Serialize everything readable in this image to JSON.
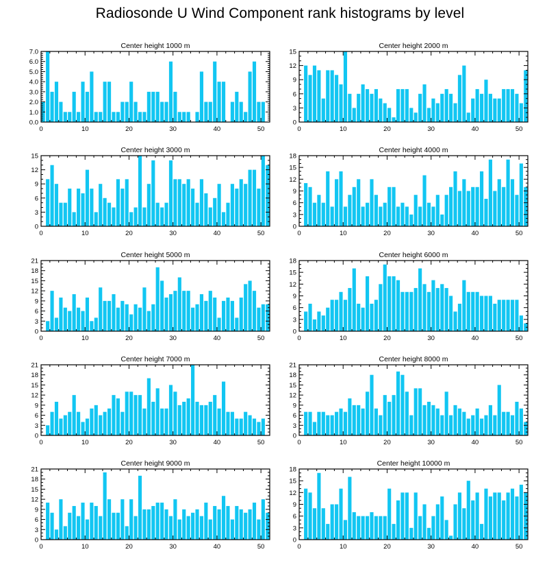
{
  "page_title": "Radiosonde U Wind Component rank histograms by level",
  "colors": {
    "bar": "#12C6F2",
    "axis": "#000000",
    "background": "#FFFFFF"
  },
  "chart_data": [
    {
      "type": "bar",
      "title": "Center height 1000 m",
      "x": [
        0,
        1,
        2,
        3,
        4,
        5,
        6,
        7,
        8,
        9,
        10,
        11,
        12,
        13,
        14,
        15,
        16,
        17,
        18,
        19,
        20,
        21,
        22,
        23,
        24,
        25,
        26,
        27,
        28,
        29,
        30,
        31,
        32,
        33,
        34,
        35,
        36,
        37,
        38,
        39,
        40,
        41,
        42,
        43,
        44,
        45,
        46,
        47,
        48,
        49,
        50,
        51
      ],
      "values": [
        2,
        7,
        3,
        4,
        2,
        1,
        1,
        3,
        1,
        4,
        3,
        5,
        1,
        1,
        4,
        4,
        1,
        1,
        2,
        2,
        4,
        2,
        1,
        1,
        3,
        3,
        3,
        2,
        2,
        6,
        3,
        1,
        1,
        1,
        0,
        1,
        5,
        2,
        2,
        6,
        4,
        4,
        0,
        2,
        3,
        2,
        1,
        5,
        6,
        2,
        2,
        0
      ],
      "xlim": [
        0,
        52
      ],
      "ylim": [
        0,
        7
      ],
      "xticks": [
        "0",
        "10",
        "20",
        "30",
        "40",
        "50"
      ],
      "yticks": [
        "0.0",
        "1.0",
        "2.0",
        "3.0",
        "4.0",
        "5.0",
        "6.0",
        "7.0"
      ]
    },
    {
      "type": "bar",
      "title": "Center height 2000 m",
      "x": [
        0,
        1,
        2,
        3,
        4,
        5,
        6,
        7,
        8,
        9,
        10,
        11,
        12,
        13,
        14,
        15,
        16,
        17,
        18,
        19,
        20,
        21,
        22,
        23,
        24,
        25,
        26,
        27,
        28,
        29,
        30,
        31,
        32,
        33,
        34,
        35,
        36,
        37,
        38,
        39,
        40,
        41,
        42,
        43,
        44,
        45,
        46,
        47,
        48,
        49,
        50,
        51
      ],
      "values": [
        0,
        12,
        10,
        12,
        11,
        5,
        11,
        11,
        10,
        8,
        15,
        6,
        3,
        6,
        8,
        7,
        6,
        7,
        5,
        4,
        3,
        1,
        7,
        7,
        7,
        3,
        2,
        6,
        8,
        3,
        5,
        4,
        6,
        7,
        6,
        4,
        10,
        12,
        2,
        5,
        7,
        6,
        9,
        6,
        5,
        5,
        7,
        7,
        7,
        6,
        4,
        11
      ],
      "xlim": [
        0,
        52
      ],
      "ylim": [
        0,
        15
      ],
      "xticks": [
        "0",
        "10",
        "20",
        "30",
        "40",
        "50"
      ],
      "yticks": [
        "0",
        "3",
        "6",
        "9",
        "12",
        "15"
      ]
    },
    {
      "type": "bar",
      "title": "Center height 3000 m",
      "x": [
        0,
        1,
        2,
        3,
        4,
        5,
        6,
        7,
        8,
        9,
        10,
        11,
        12,
        13,
        14,
        15,
        16,
        17,
        18,
        19,
        20,
        21,
        22,
        23,
        24,
        25,
        26,
        27,
        28,
        29,
        30,
        31,
        32,
        33,
        34,
        35,
        36,
        37,
        38,
        39,
        40,
        41,
        42,
        43,
        44,
        45,
        46,
        47,
        48,
        49,
        50,
        51
      ],
      "values": [
        0,
        10,
        13,
        9,
        5,
        5,
        8,
        3,
        8,
        7,
        12,
        8,
        3,
        9,
        6,
        5,
        4,
        10,
        8,
        10,
        3,
        4,
        15,
        4,
        9,
        14,
        5,
        4,
        5,
        14,
        10,
        10,
        9,
        10,
        8,
        5,
        10,
        7,
        4,
        6,
        9,
        3,
        5,
        9,
        8,
        10,
        9,
        12,
        12,
        8,
        15,
        13
      ],
      "xlim": [
        0,
        52
      ],
      "ylim": [
        0,
        15
      ],
      "xticks": [
        "0",
        "10",
        "20",
        "30",
        "40",
        "50"
      ],
      "yticks": [
        "0",
        "3",
        "6",
        "9",
        "12",
        "15"
      ]
    },
    {
      "type": "bar",
      "title": "Center height 4000 m",
      "x": [
        0,
        1,
        2,
        3,
        4,
        5,
        6,
        7,
        8,
        9,
        10,
        11,
        12,
        13,
        14,
        15,
        16,
        17,
        18,
        19,
        20,
        21,
        22,
        23,
        24,
        25,
        26,
        27,
        28,
        29,
        30,
        31,
        32,
        33,
        34,
        35,
        36,
        37,
        38,
        39,
        40,
        41,
        42,
        43,
        44,
        45,
        46,
        47,
        48,
        49,
        50,
        51
      ],
      "values": [
        0,
        11,
        10,
        6,
        8,
        6,
        14,
        5,
        12,
        14,
        5,
        8,
        10,
        12,
        5,
        6,
        12,
        8,
        5,
        6,
        10,
        10,
        5,
        6,
        5,
        3,
        8,
        5,
        13,
        6,
        5,
        8,
        3,
        8,
        10,
        14,
        9,
        12,
        9,
        10,
        10,
        14,
        7,
        17,
        9,
        12,
        10,
        17,
        12,
        8,
        16,
        10
      ],
      "xlim": [
        0,
        52
      ],
      "ylim": [
        0,
        18
      ],
      "xticks": [
        "0",
        "10",
        "20",
        "30",
        "40",
        "50"
      ],
      "yticks": [
        "0",
        "3",
        "6",
        "9",
        "12",
        "15",
        "18"
      ]
    },
    {
      "type": "bar",
      "title": "Center height 5000 m",
      "x": [
        0,
        1,
        2,
        3,
        4,
        5,
        6,
        7,
        8,
        9,
        10,
        11,
        12,
        13,
        14,
        15,
        16,
        17,
        18,
        19,
        20,
        21,
        22,
        23,
        24,
        25,
        26,
        27,
        28,
        29,
        30,
        31,
        32,
        33,
        34,
        35,
        36,
        37,
        38,
        39,
        40,
        41,
        42,
        43,
        44,
        45,
        46,
        47,
        48,
        49,
        50,
        51
      ],
      "values": [
        0,
        3,
        12,
        4,
        10,
        7,
        6,
        11,
        7,
        6,
        10,
        3,
        4,
        13,
        9,
        9,
        11,
        7,
        9,
        8,
        5,
        8,
        7,
        13,
        6,
        8,
        19,
        15,
        10,
        11,
        12,
        16,
        12,
        12,
        7,
        8,
        11,
        9,
        12,
        10,
        4,
        9,
        10,
        9,
        4,
        10,
        14,
        15,
        12,
        7,
        8,
        8
      ],
      "xlim": [
        0,
        52
      ],
      "ylim": [
        0,
        21
      ],
      "xticks": [
        "0",
        "10",
        "20",
        "30",
        "40",
        "50"
      ],
      "yticks": [
        "0",
        "3",
        "6",
        "9",
        "12",
        "15",
        "18",
        "21"
      ]
    },
    {
      "type": "bar",
      "title": "Center height 6000 m",
      "x": [
        0,
        1,
        2,
        3,
        4,
        5,
        6,
        7,
        8,
        9,
        10,
        11,
        12,
        13,
        14,
        15,
        16,
        17,
        18,
        19,
        20,
        21,
        22,
        23,
        24,
        25,
        26,
        27,
        28,
        29,
        30,
        31,
        32,
        33,
        34,
        35,
        36,
        37,
        38,
        39,
        40,
        41,
        42,
        43,
        44,
        45,
        46,
        47,
        48,
        49,
        50,
        51
      ],
      "values": [
        0,
        5,
        7,
        3,
        5,
        4,
        6,
        8,
        8,
        10,
        8,
        11,
        16,
        7,
        6,
        14,
        7,
        8,
        12,
        17,
        14,
        14,
        13,
        10,
        10,
        10,
        11,
        16,
        12,
        10,
        13,
        11,
        12,
        11,
        9,
        5,
        7,
        13,
        10,
        10,
        10,
        9,
        9,
        9,
        7,
        8,
        8,
        8,
        8,
        8,
        4,
        2
      ],
      "xlim": [
        0,
        52
      ],
      "ylim": [
        0,
        18
      ],
      "xticks": [
        "0",
        "10",
        "20",
        "30",
        "40",
        "50"
      ],
      "yticks": [
        "0",
        "3",
        "6",
        "9",
        "12",
        "15",
        "18"
      ]
    },
    {
      "type": "bar",
      "title": "Center height 7000 m",
      "x": [
        0,
        1,
        2,
        3,
        4,
        5,
        6,
        7,
        8,
        9,
        10,
        11,
        12,
        13,
        14,
        15,
        16,
        17,
        18,
        19,
        20,
        21,
        22,
        23,
        24,
        25,
        26,
        27,
        28,
        29,
        30,
        31,
        32,
        33,
        34,
        35,
        36,
        37,
        38,
        39,
        40,
        41,
        42,
        43,
        44,
        45,
        46,
        47,
        48,
        49,
        50,
        51
      ],
      "values": [
        0,
        3,
        7,
        10,
        5,
        6,
        7,
        12,
        7,
        4,
        5,
        8,
        9,
        6,
        7,
        8,
        12,
        11,
        7,
        13,
        13,
        12,
        12,
        8,
        17,
        10,
        14,
        8,
        8,
        15,
        13,
        9,
        10,
        11,
        21,
        10,
        9,
        9,
        10,
        12,
        8,
        16,
        7,
        7,
        5,
        5,
        7,
        6,
        5,
        4,
        5,
        0
      ],
      "xlim": [
        0,
        52
      ],
      "ylim": [
        0,
        21
      ],
      "xticks": [
        "0",
        "10",
        "20",
        "30",
        "40",
        "50"
      ],
      "yticks": [
        "0",
        "3",
        "6",
        "9",
        "12",
        "15",
        "18",
        "21"
      ]
    },
    {
      "type": "bar",
      "title": "Center height 8000 m",
      "x": [
        0,
        1,
        2,
        3,
        4,
        5,
        6,
        7,
        8,
        9,
        10,
        11,
        12,
        13,
        14,
        15,
        16,
        17,
        18,
        19,
        20,
        21,
        22,
        23,
        24,
        25,
        26,
        27,
        28,
        29,
        30,
        31,
        32,
        33,
        34,
        35,
        36,
        37,
        38,
        39,
        40,
        41,
        42,
        43,
        44,
        45,
        46,
        47,
        48,
        49,
        50,
        51
      ],
      "values": [
        0,
        7,
        7,
        4,
        7,
        7,
        6,
        6,
        7,
        8,
        7,
        11,
        9,
        9,
        8,
        13,
        18,
        8,
        6,
        12,
        10,
        12,
        19,
        18,
        13,
        6,
        14,
        14,
        9,
        10,
        9,
        8,
        6,
        13,
        6,
        9,
        8,
        7,
        5,
        6,
        8,
        5,
        6,
        9,
        6,
        15,
        7,
        7,
        6,
        10,
        8,
        4
      ],
      "xlim": [
        0,
        52
      ],
      "ylim": [
        0,
        21
      ],
      "xticks": [
        "0",
        "10",
        "20",
        "30",
        "40",
        "50"
      ],
      "yticks": [
        "0",
        "3",
        "6",
        "9",
        "12",
        "15",
        "18",
        "21"
      ]
    },
    {
      "type": "bar",
      "title": "Center height 9000 m",
      "x": [
        0,
        1,
        2,
        3,
        4,
        5,
        6,
        7,
        8,
        9,
        10,
        11,
        12,
        13,
        14,
        15,
        16,
        17,
        18,
        19,
        20,
        21,
        22,
        23,
        24,
        25,
        26,
        27,
        28,
        29,
        30,
        31,
        32,
        33,
        34,
        35,
        36,
        37,
        38,
        39,
        40,
        41,
        42,
        43,
        44,
        45,
        46,
        47,
        48,
        49,
        50,
        51
      ],
      "values": [
        0,
        11,
        8,
        3,
        12,
        4,
        8,
        10,
        7,
        11,
        6,
        11,
        10,
        7,
        20,
        12,
        8,
        8,
        12,
        4,
        12,
        7,
        19,
        9,
        9,
        10,
        11,
        11,
        9,
        7,
        12,
        6,
        9,
        7,
        8,
        9,
        7,
        11,
        6,
        10,
        9,
        13,
        10,
        6,
        10,
        9,
        8,
        9,
        11,
        6,
        12,
        8
      ],
      "xlim": [
        0,
        52
      ],
      "ylim": [
        0,
        21
      ],
      "xticks": [
        "0",
        "10",
        "20",
        "30",
        "40",
        "50"
      ],
      "yticks": [
        "0",
        "3",
        "6",
        "9",
        "12",
        "15",
        "18",
        "21"
      ]
    },
    {
      "type": "bar",
      "title": "Center height 10000 m",
      "x": [
        0,
        1,
        2,
        3,
        4,
        5,
        6,
        7,
        8,
        9,
        10,
        11,
        12,
        13,
        14,
        15,
        16,
        17,
        18,
        19,
        20,
        21,
        22,
        23,
        24,
        25,
        26,
        27,
        28,
        29,
        30,
        31,
        32,
        33,
        34,
        35,
        36,
        37,
        38,
        39,
        40,
        41,
        42,
        43,
        44,
        45,
        46,
        47,
        48,
        49,
        50,
        51
      ],
      "values": [
        0,
        13,
        12,
        8,
        17,
        8,
        4,
        9,
        9,
        13,
        5,
        16,
        7,
        6,
        6,
        6,
        7,
        6,
        6,
        6,
        13,
        4,
        10,
        12,
        12,
        3,
        12,
        6,
        9,
        3,
        6,
        9,
        11,
        5,
        1,
        9,
        12,
        8,
        15,
        10,
        12,
        4,
        13,
        11,
        12,
        12,
        10,
        12,
        13,
        11,
        14,
        12
      ],
      "xlim": [
        0,
        52
      ],
      "ylim": [
        0,
        18
      ],
      "xticks": [
        "0",
        "10",
        "20",
        "30",
        "40",
        "50"
      ],
      "yticks": [
        "0",
        "3",
        "6",
        "9",
        "12",
        "15",
        "18"
      ]
    }
  ]
}
